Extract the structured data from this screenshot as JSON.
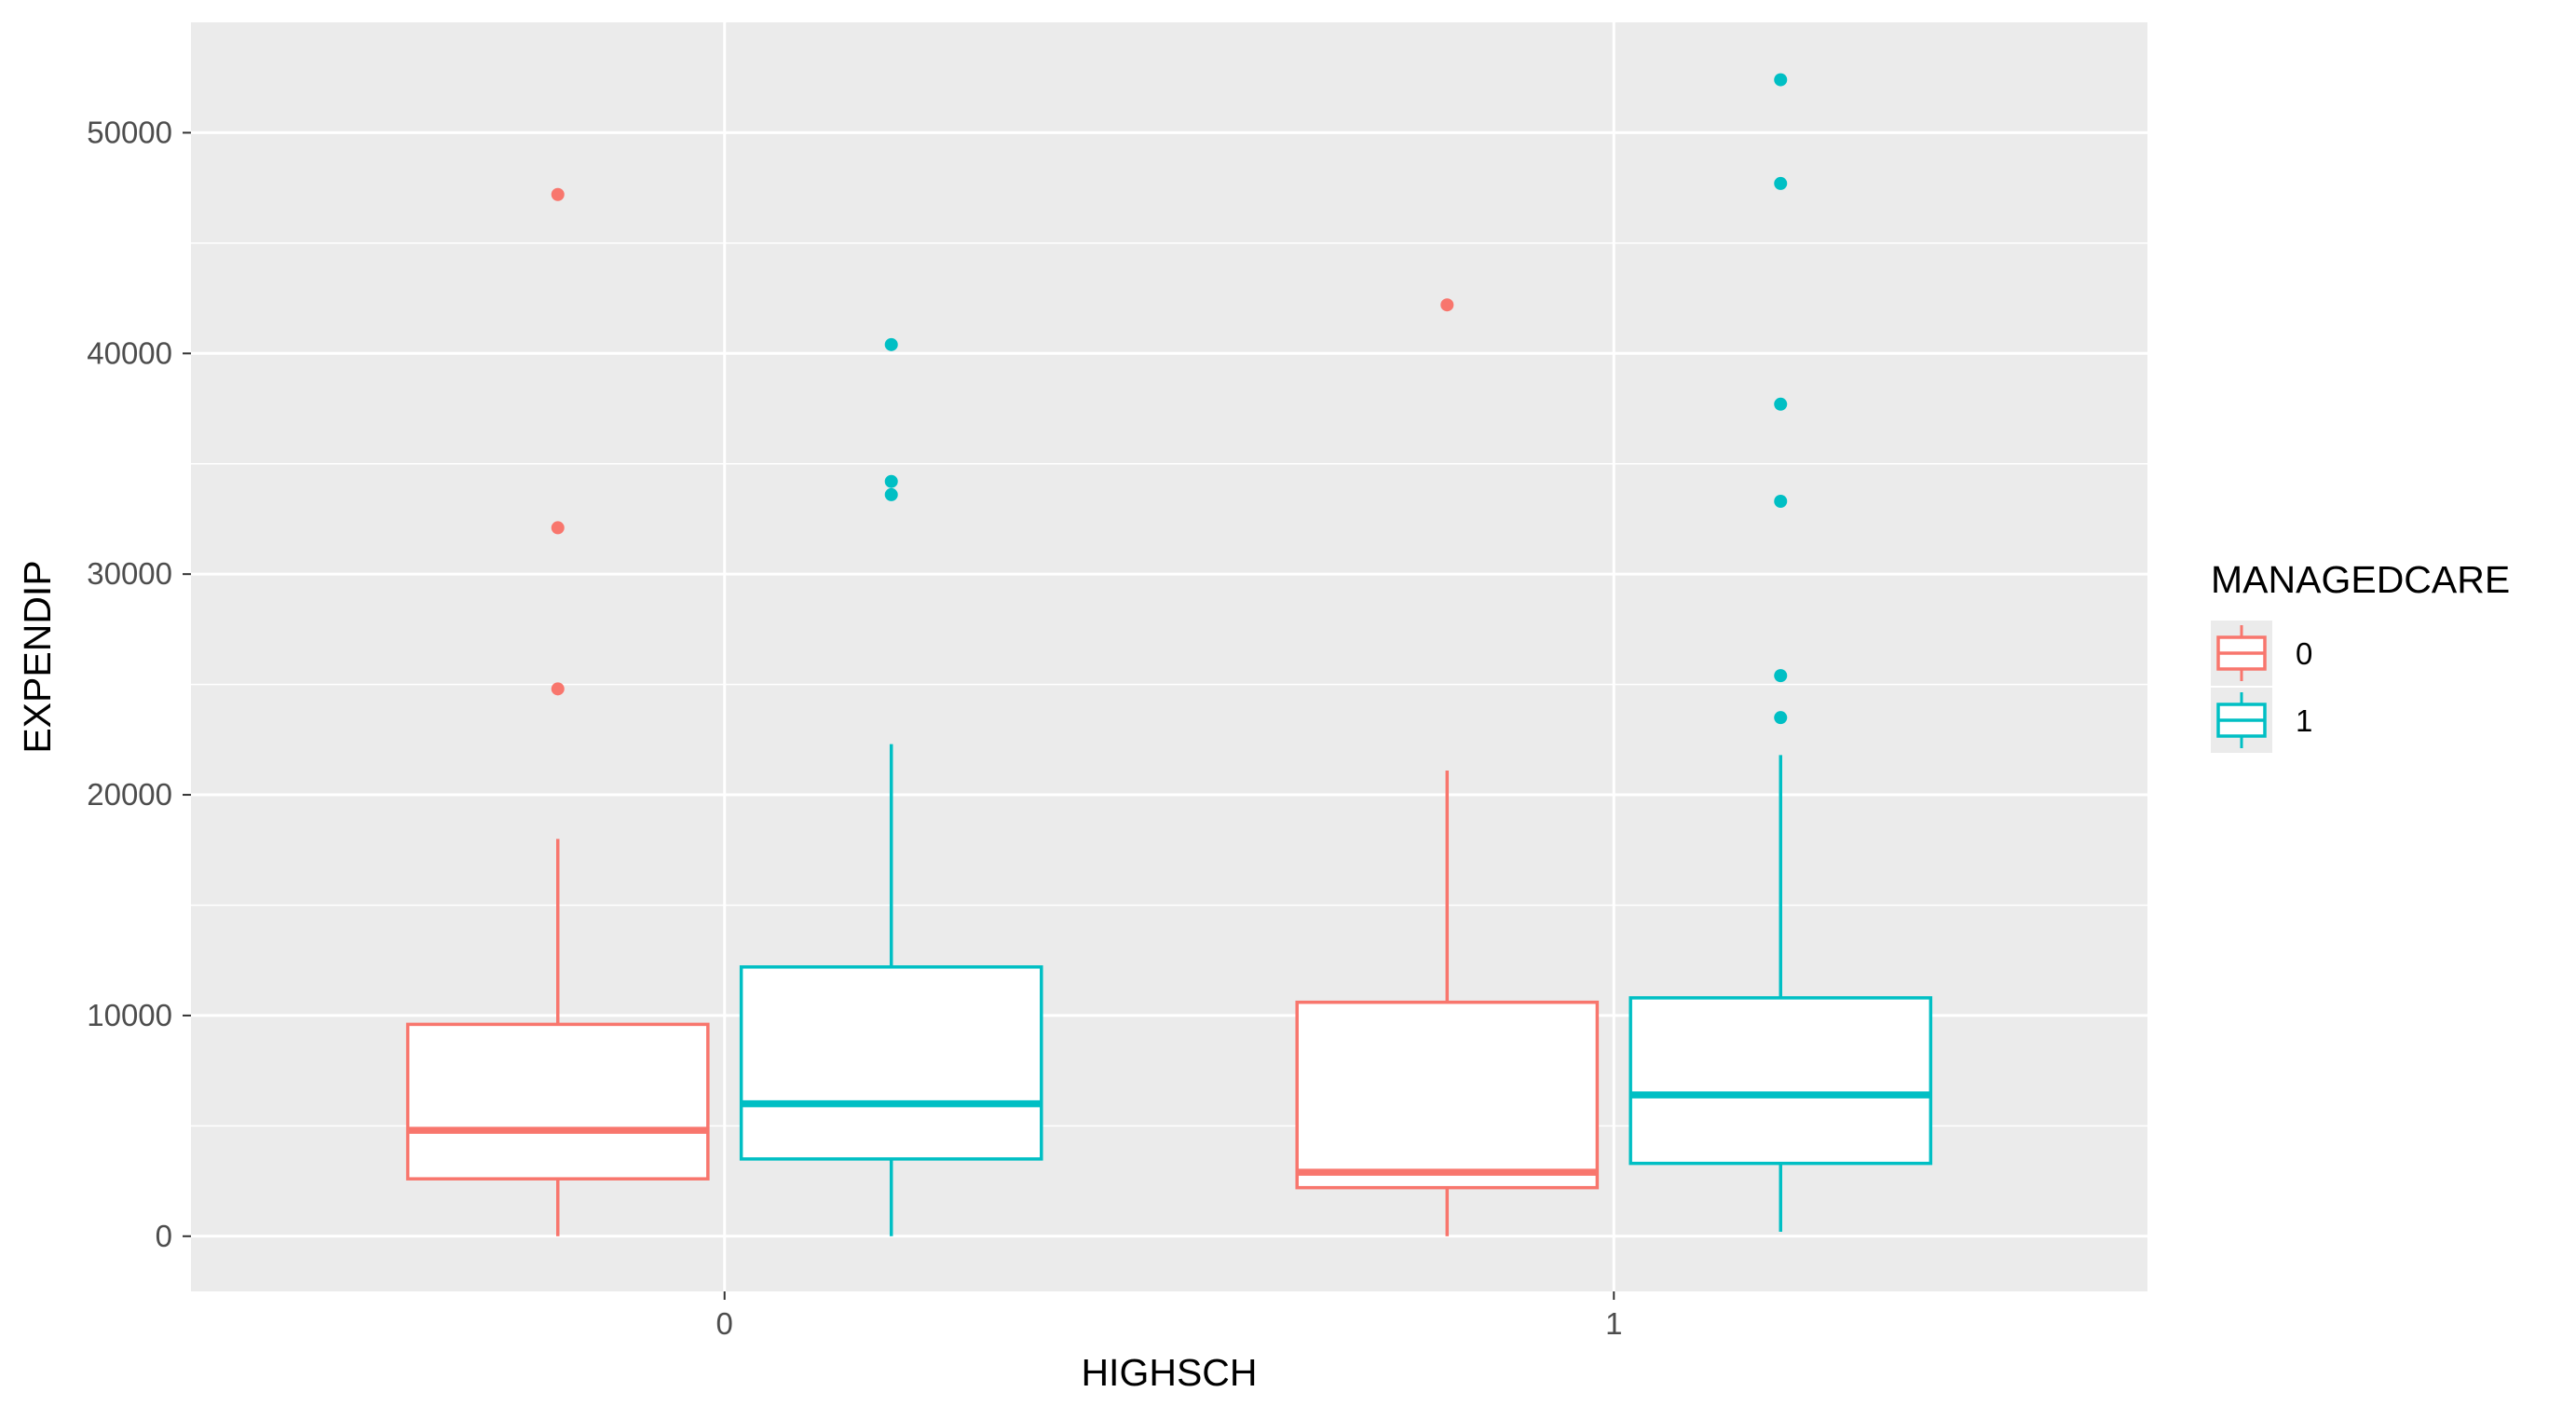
{
  "chart_data": {
    "type": "boxplot",
    "xlabel": "HIGHSCH",
    "ylabel": "EXPENDIP",
    "categories": [
      "0",
      "1"
    ],
    "ylim": [
      -2500,
      55000
    ],
    "yticks": [
      0,
      10000,
      20000,
      30000,
      40000,
      50000
    ],
    "ytick_labels": [
      "0",
      "10000",
      "20000",
      "30000",
      "40000",
      "50000"
    ],
    "grid": true,
    "legend": {
      "title": "MANAGEDCARE",
      "placement": "right",
      "entries": [
        "0",
        "1"
      ]
    },
    "colors": {
      "0": "#F8766D",
      "1": "#00BFC4"
    },
    "series": [
      {
        "name": "0",
        "boxes": [
          {
            "category": "0",
            "whisker_low": 0,
            "q1": 2600,
            "median": 4800,
            "q3": 9600,
            "whisker_high": 18000,
            "outliers": [
              24800,
              32100,
              47200
            ]
          },
          {
            "category": "1",
            "whisker_low": 0,
            "q1": 2200,
            "median": 2900,
            "q3": 10600,
            "whisker_high": 21100,
            "outliers": [
              42200
            ]
          }
        ]
      },
      {
        "name": "1",
        "boxes": [
          {
            "category": "0",
            "whisker_low": 0,
            "q1": 3500,
            "median": 6000,
            "q3": 12200,
            "whisker_high": 22300,
            "outliers": [
              33600,
              34200,
              40400
            ]
          },
          {
            "category": "1",
            "whisker_low": 200,
            "q1": 3300,
            "median": 6400,
            "q3": 10800,
            "whisker_high": 21800,
            "outliers": [
              23500,
              25400,
              33300,
              37700,
              47700,
              52400
            ]
          }
        ]
      }
    ]
  }
}
